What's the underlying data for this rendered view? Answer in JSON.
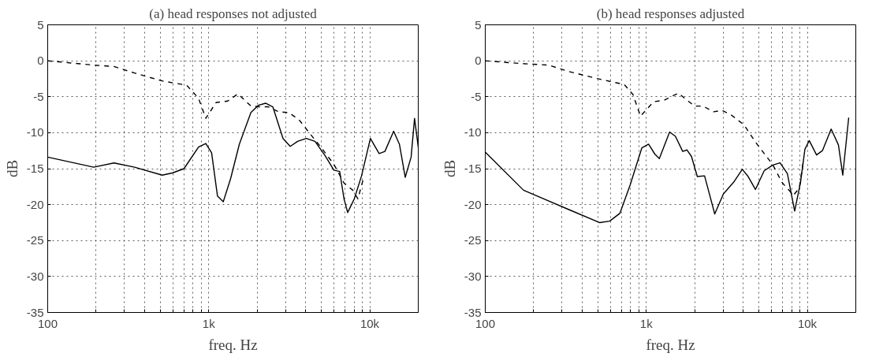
{
  "chart_data": [
    {
      "type": "line",
      "title": "(a) head responses not adjusted",
      "xlabel": "freq. Hz",
      "ylabel": "dB",
      "log": "x",
      "grid": true,
      "xlim": [
        100,
        20000
      ],
      "ylim": [
        -35,
        5
      ],
      "xticks": [
        {
          "value": 100,
          "label": "100"
        },
        {
          "value": 200,
          "label": null
        },
        {
          "value": 300,
          "label": null
        },
        {
          "value": 400,
          "label": null
        },
        {
          "value": 500,
          "label": null
        },
        {
          "value": 600,
          "label": null
        },
        {
          "value": 700,
          "label": null
        },
        {
          "value": 800,
          "label": null
        },
        {
          "value": 900,
          "label": null
        },
        {
          "value": 1000,
          "label": "1k"
        },
        {
          "value": 2000,
          "label": null
        },
        {
          "value": 3000,
          "label": null
        },
        {
          "value": 4000,
          "label": null
        },
        {
          "value": 5000,
          "label": null
        },
        {
          "value": 6000,
          "label": null
        },
        {
          "value": 7000,
          "label": null
        },
        {
          "value": 8000,
          "label": null
        },
        {
          "value": 9000,
          "label": null
        },
        {
          "value": 10000,
          "label": "10k"
        }
      ],
      "yticks": [
        -35,
        -30,
        -25,
        -20,
        -15,
        -10,
        -5,
        0,
        5
      ],
      "series": [
        {
          "color": "#000000",
          "line_style": "solid",
          "x": [
            100,
            193,
            258,
            346,
            514,
            594,
            702,
            864,
            959,
            1042,
            1133,
            1231,
            1367,
            1549,
            1828,
            2030,
            2254,
            2500,
            2893,
            3208,
            3563,
            4036,
            4571,
            5284,
            5986,
            6505,
            6920,
            7290,
            8015,
            8892,
            10090,
            11430,
            12420,
            14070,
            15280,
            16600,
            18060,
            18970,
            20000
          ],
          "values": [
            -13.4,
            -14.8,
            -14.2,
            -14.8,
            -15.9,
            -15.6,
            -15.0,
            -12.0,
            -11.5,
            -12.8,
            -18.8,
            -19.6,
            -16.4,
            -11.6,
            -7.2,
            -6.2,
            -5.9,
            -6.4,
            -10.8,
            -11.9,
            -11.2,
            -10.8,
            -11.2,
            -13.2,
            -15.2,
            -15.4,
            -19.2,
            -21.1,
            -19.2,
            -16.0,
            -10.8,
            -12.9,
            -12.6,
            -9.8,
            -11.6,
            -16.2,
            -13.4,
            -8.0,
            -12.0
          ]
        },
        {
          "color": "#000000",
          "line_style": "dashed",
          "x": [
            100,
            193,
            258,
            346,
            514,
            729,
            864,
            959,
            1111,
            1312,
            1518,
            1828,
            2070,
            2340,
            2724,
            3142,
            3637,
            4207,
            4967,
            5986,
            6920,
            7850,
            8440,
            9075
          ],
          "values": [
            0,
            -0.6,
            -0.8,
            -1.7,
            -2.8,
            -3.4,
            -5.2,
            -8.0,
            -5.8,
            -5.6,
            -4.6,
            -6.3,
            -6.4,
            -6.4,
            -7.1,
            -7.2,
            -8.2,
            -10.0,
            -12.0,
            -14.4,
            -17.0,
            -18.0,
            -19.2,
            -16.6
          ]
        }
      ]
    },
    {
      "type": "line",
      "title": "(b) head responses adjusted",
      "xlabel": "freq. Hz",
      "ylabel": "dB",
      "log": "x",
      "grid": true,
      "xlim": [
        100,
        20000
      ],
      "ylim": [
        -35,
        5
      ],
      "xticks": [
        {
          "value": 100,
          "label": "100"
        },
        {
          "value": 200,
          "label": null
        },
        {
          "value": 300,
          "label": null
        },
        {
          "value": 400,
          "label": null
        },
        {
          "value": 500,
          "label": null
        },
        {
          "value": 600,
          "label": null
        },
        {
          "value": 700,
          "label": null
        },
        {
          "value": 800,
          "label": null
        },
        {
          "value": 900,
          "label": null
        },
        {
          "value": 1000,
          "label": "1k"
        },
        {
          "value": 2000,
          "label": null
        },
        {
          "value": 3000,
          "label": null
        },
        {
          "value": 4000,
          "label": null
        },
        {
          "value": 5000,
          "label": null
        },
        {
          "value": 6000,
          "label": null
        },
        {
          "value": 7000,
          "label": null
        },
        {
          "value": 8000,
          "label": null
        },
        {
          "value": 9000,
          "label": null
        },
        {
          "value": 10000,
          "label": "10k"
        }
      ],
      "yticks": [
        -35,
        -30,
        -25,
        -20,
        -15,
        -10,
        -5,
        0,
        5
      ],
      "series": [
        {
          "color": "#000000",
          "line_style": "solid",
          "x": [
            100,
            173,
            331,
            512,
            592,
            686,
            793,
            939,
            1033,
            1132,
            1205,
            1396,
            1517,
            1683,
            1790,
            1908,
            2074,
            2301,
            2661,
            3013,
            3485,
            3945,
            4292,
            4762,
            5394,
            6109,
            6776,
            7522,
            8343,
            9074,
            9661,
            10280,
            11410,
            12410,
            14060,
            15600,
            16600,
            18070
          ],
          "values": [
            -12.7,
            -18.0,
            -20.7,
            -22.5,
            -22.3,
            -21.2,
            -17.3,
            -12.1,
            -11.6,
            -13.0,
            -13.6,
            -9.9,
            -10.5,
            -12.6,
            -12.4,
            -13.3,
            -16.1,
            -16.0,
            -21.3,
            -18.5,
            -16.9,
            -15.1,
            -16.1,
            -17.9,
            -15.3,
            -14.5,
            -14.2,
            -15.7,
            -20.9,
            -16.9,
            -12.3,
            -11.1,
            -13.1,
            -12.5,
            -9.5,
            -11.7,
            -15.9,
            -7.9
          ]
        },
        {
          "color": "#000000",
          "line_style": "dashed",
          "x": [
            100,
            170,
            247,
            331,
            501,
            730,
            827,
            920,
            1110,
            1284,
            1582,
            1990,
            2255,
            2608,
            2957,
            3350,
            4040,
            4764,
            6120,
            6948,
            8200,
            8913,
            9485
          ],
          "values": [
            0,
            -0.4,
            -0.6,
            -1.5,
            -2.5,
            -3.3,
            -4.7,
            -7.7,
            -5.7,
            -5.5,
            -4.5,
            -6.3,
            -6.3,
            -7.1,
            -6.9,
            -7.5,
            -8.9,
            -11.3,
            -14.5,
            -16.9,
            -18.7,
            -17.7,
            -13.7
          ]
        }
      ]
    }
  ]
}
